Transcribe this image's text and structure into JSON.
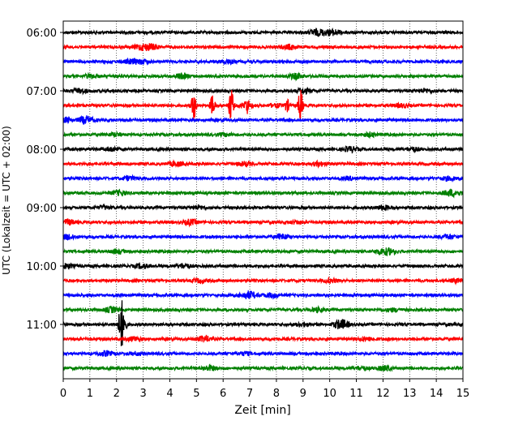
{
  "chart_data": {
    "type": "line",
    "title": "",
    "xlabel": "Zeit  [min]",
    "ylabel": "UTC (Lokalzeit = UTC + 02:00)",
    "xlim": [
      0,
      15
    ],
    "x_ticks": [
      "0",
      "1",
      "2",
      "3",
      "4",
      "5",
      "6",
      "7",
      "8",
      "9",
      "10",
      "11",
      "12",
      "13",
      "14",
      "15"
    ],
    "y_ticks": [
      "06:00",
      "07:00",
      "08:00",
      "09:00",
      "10:00",
      "11:00"
    ],
    "grid": "vertical dotted lines at each minute",
    "trace_interval_minutes": 15,
    "trace_start": "06:00",
    "trace_count": 24,
    "colors": [
      "#000000",
      "#ff0000",
      "#0000ff",
      "#008000"
    ],
    "events": [
      {
        "trace_start": "07:15",
        "minute": 4.9,
        "amplitude": 0.7
      },
      {
        "trace_start": "07:15",
        "minute": 5.6,
        "amplitude": 0.55
      },
      {
        "trace_start": "07:15",
        "minute": 6.3,
        "amplitude": 0.9
      },
      {
        "trace_start": "07:15",
        "minute": 6.9,
        "amplitude": 0.3
      },
      {
        "trace_start": "07:15",
        "minute": 8.4,
        "amplitude": 0.3
      },
      {
        "trace_start": "07:15",
        "minute": 8.9,
        "amplitude": 0.85
      },
      {
        "trace_start": "11:00",
        "minute": 2.2,
        "amplitude": 1.2
      }
    ]
  }
}
